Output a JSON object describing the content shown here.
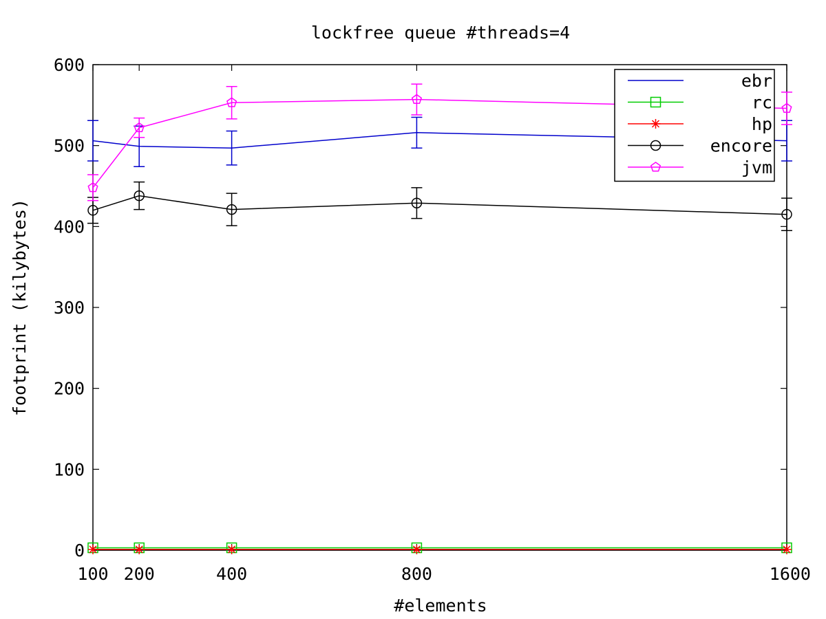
{
  "chart_data": {
    "type": "line",
    "title": "lockfree queue #threads=4",
    "xlabel": "#elements",
    "ylabel": "footprint (kilybytes)",
    "x": [
      100,
      200,
      400,
      800,
      1600
    ],
    "xlim": [
      100,
      1600
    ],
    "ylim": [
      0,
      600
    ],
    "xticks": [
      100,
      200,
      400,
      800,
      1600
    ],
    "yticks": [
      0,
      100,
      200,
      300,
      400,
      500,
      600
    ],
    "grid": false,
    "legend_position": "top-right",
    "series": [
      {
        "name": "ebr",
        "color": "#0000cc",
        "marker": "none",
        "values": [
          506,
          499,
          497,
          516,
          506
        ],
        "err": [
          25,
          25,
          21,
          19,
          25
        ]
      },
      {
        "name": "rc",
        "color": "#00cc00",
        "marker": "square",
        "values": [
          3,
          3,
          3,
          3,
          3
        ],
        "err": [
          0,
          0,
          0,
          0,
          0
        ]
      },
      {
        "name": "hp",
        "color": "#ff0000",
        "marker": "star",
        "values": [
          1,
          1,
          1,
          1,
          1
        ],
        "err": [
          0,
          0,
          0,
          0,
          0
        ]
      },
      {
        "name": "encore",
        "color": "#000000",
        "marker": "circle",
        "values": [
          420,
          438,
          421,
          429,
          415
        ],
        "err": [
          16,
          17,
          20,
          19,
          20
        ]
      },
      {
        "name": "jvm",
        "color": "#ff00ff",
        "marker": "pentagon",
        "values": [
          448,
          522,
          553,
          557,
          546
        ],
        "err": [
          16,
          12,
          20,
          19,
          20
        ]
      }
    ]
  }
}
